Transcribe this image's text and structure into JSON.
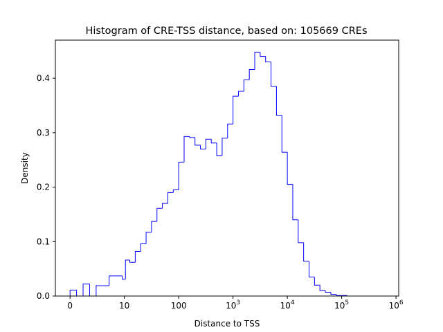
{
  "chart_data": {
    "type": "histogram",
    "title": "Histogram of CRE-TSS distance, based on: 105669 CREs",
    "xlabel": "Distance to TSS",
    "ylabel": "Density",
    "xscale": "symlog",
    "xlim": [
      -0.27,
      6.05
    ],
    "ylim": [
      0,
      0.47
    ],
    "grid": false,
    "legend": "none",
    "line_color": "#0000ff",
    "x_ticks": [
      {
        "value": 0,
        "label": "0"
      },
      {
        "value": 1,
        "label": "10"
      },
      {
        "value": 2,
        "label": "100"
      },
      {
        "value": 3,
        "base": "10",
        "exp": "3"
      },
      {
        "value": 4,
        "base": "10",
        "exp": "4"
      },
      {
        "value": 5,
        "base": "10",
        "exp": "5"
      },
      {
        "value": 6,
        "base": "10",
        "exp": "6"
      }
    ],
    "y_ticks": [
      "0.0",
      "0.1",
      "0.2",
      "0.3",
      "0.4"
    ],
    "y_tick_values": [
      0.0,
      0.1,
      0.2,
      0.3,
      0.4
    ],
    "bin_edges": [
      0.0,
      0.12,
      0.24,
      0.36,
      0.48,
      0.6,
      0.72,
      0.84,
      0.96,
      1.02,
      1.1,
      1.2,
      1.3,
      1.4,
      1.5,
      1.6,
      1.7,
      1.8,
      1.9,
      2.0,
      2.1,
      2.2,
      2.3,
      2.4,
      2.5,
      2.6,
      2.7,
      2.8,
      2.9,
      3.0,
      3.1,
      3.2,
      3.3,
      3.4,
      3.5,
      3.6,
      3.7,
      3.8,
      3.9,
      4.0,
      4.1,
      4.2,
      4.3,
      4.4,
      4.5,
      4.6,
      4.7,
      4.8,
      4.9,
      5.0,
      5.1,
      5.2,
      5.3,
      5.4,
      5.5,
      5.6,
      5.7,
      5.8
    ],
    "densities": [
      0.011,
      0.0,
      0.022,
      0.0,
      0.019,
      0.019,
      0.037,
      0.037,
      0.031,
      0.066,
      0.062,
      0.082,
      0.096,
      0.117,
      0.137,
      0.161,
      0.17,
      0.19,
      0.195,
      0.246,
      0.293,
      0.291,
      0.277,
      0.27,
      0.288,
      0.281,
      0.258,
      0.29,
      0.316,
      0.367,
      0.376,
      0.397,
      0.416,
      0.448,
      0.44,
      0.43,
      0.385,
      0.332,
      0.264,
      0.205,
      0.14,
      0.098,
      0.064,
      0.035,
      0.02,
      0.01,
      0.007,
      0.003,
      0.001,
      0.001,
      0.0,
      0.0,
      0.0,
      0.0,
      0.0,
      0.0,
      0.0
    ]
  }
}
